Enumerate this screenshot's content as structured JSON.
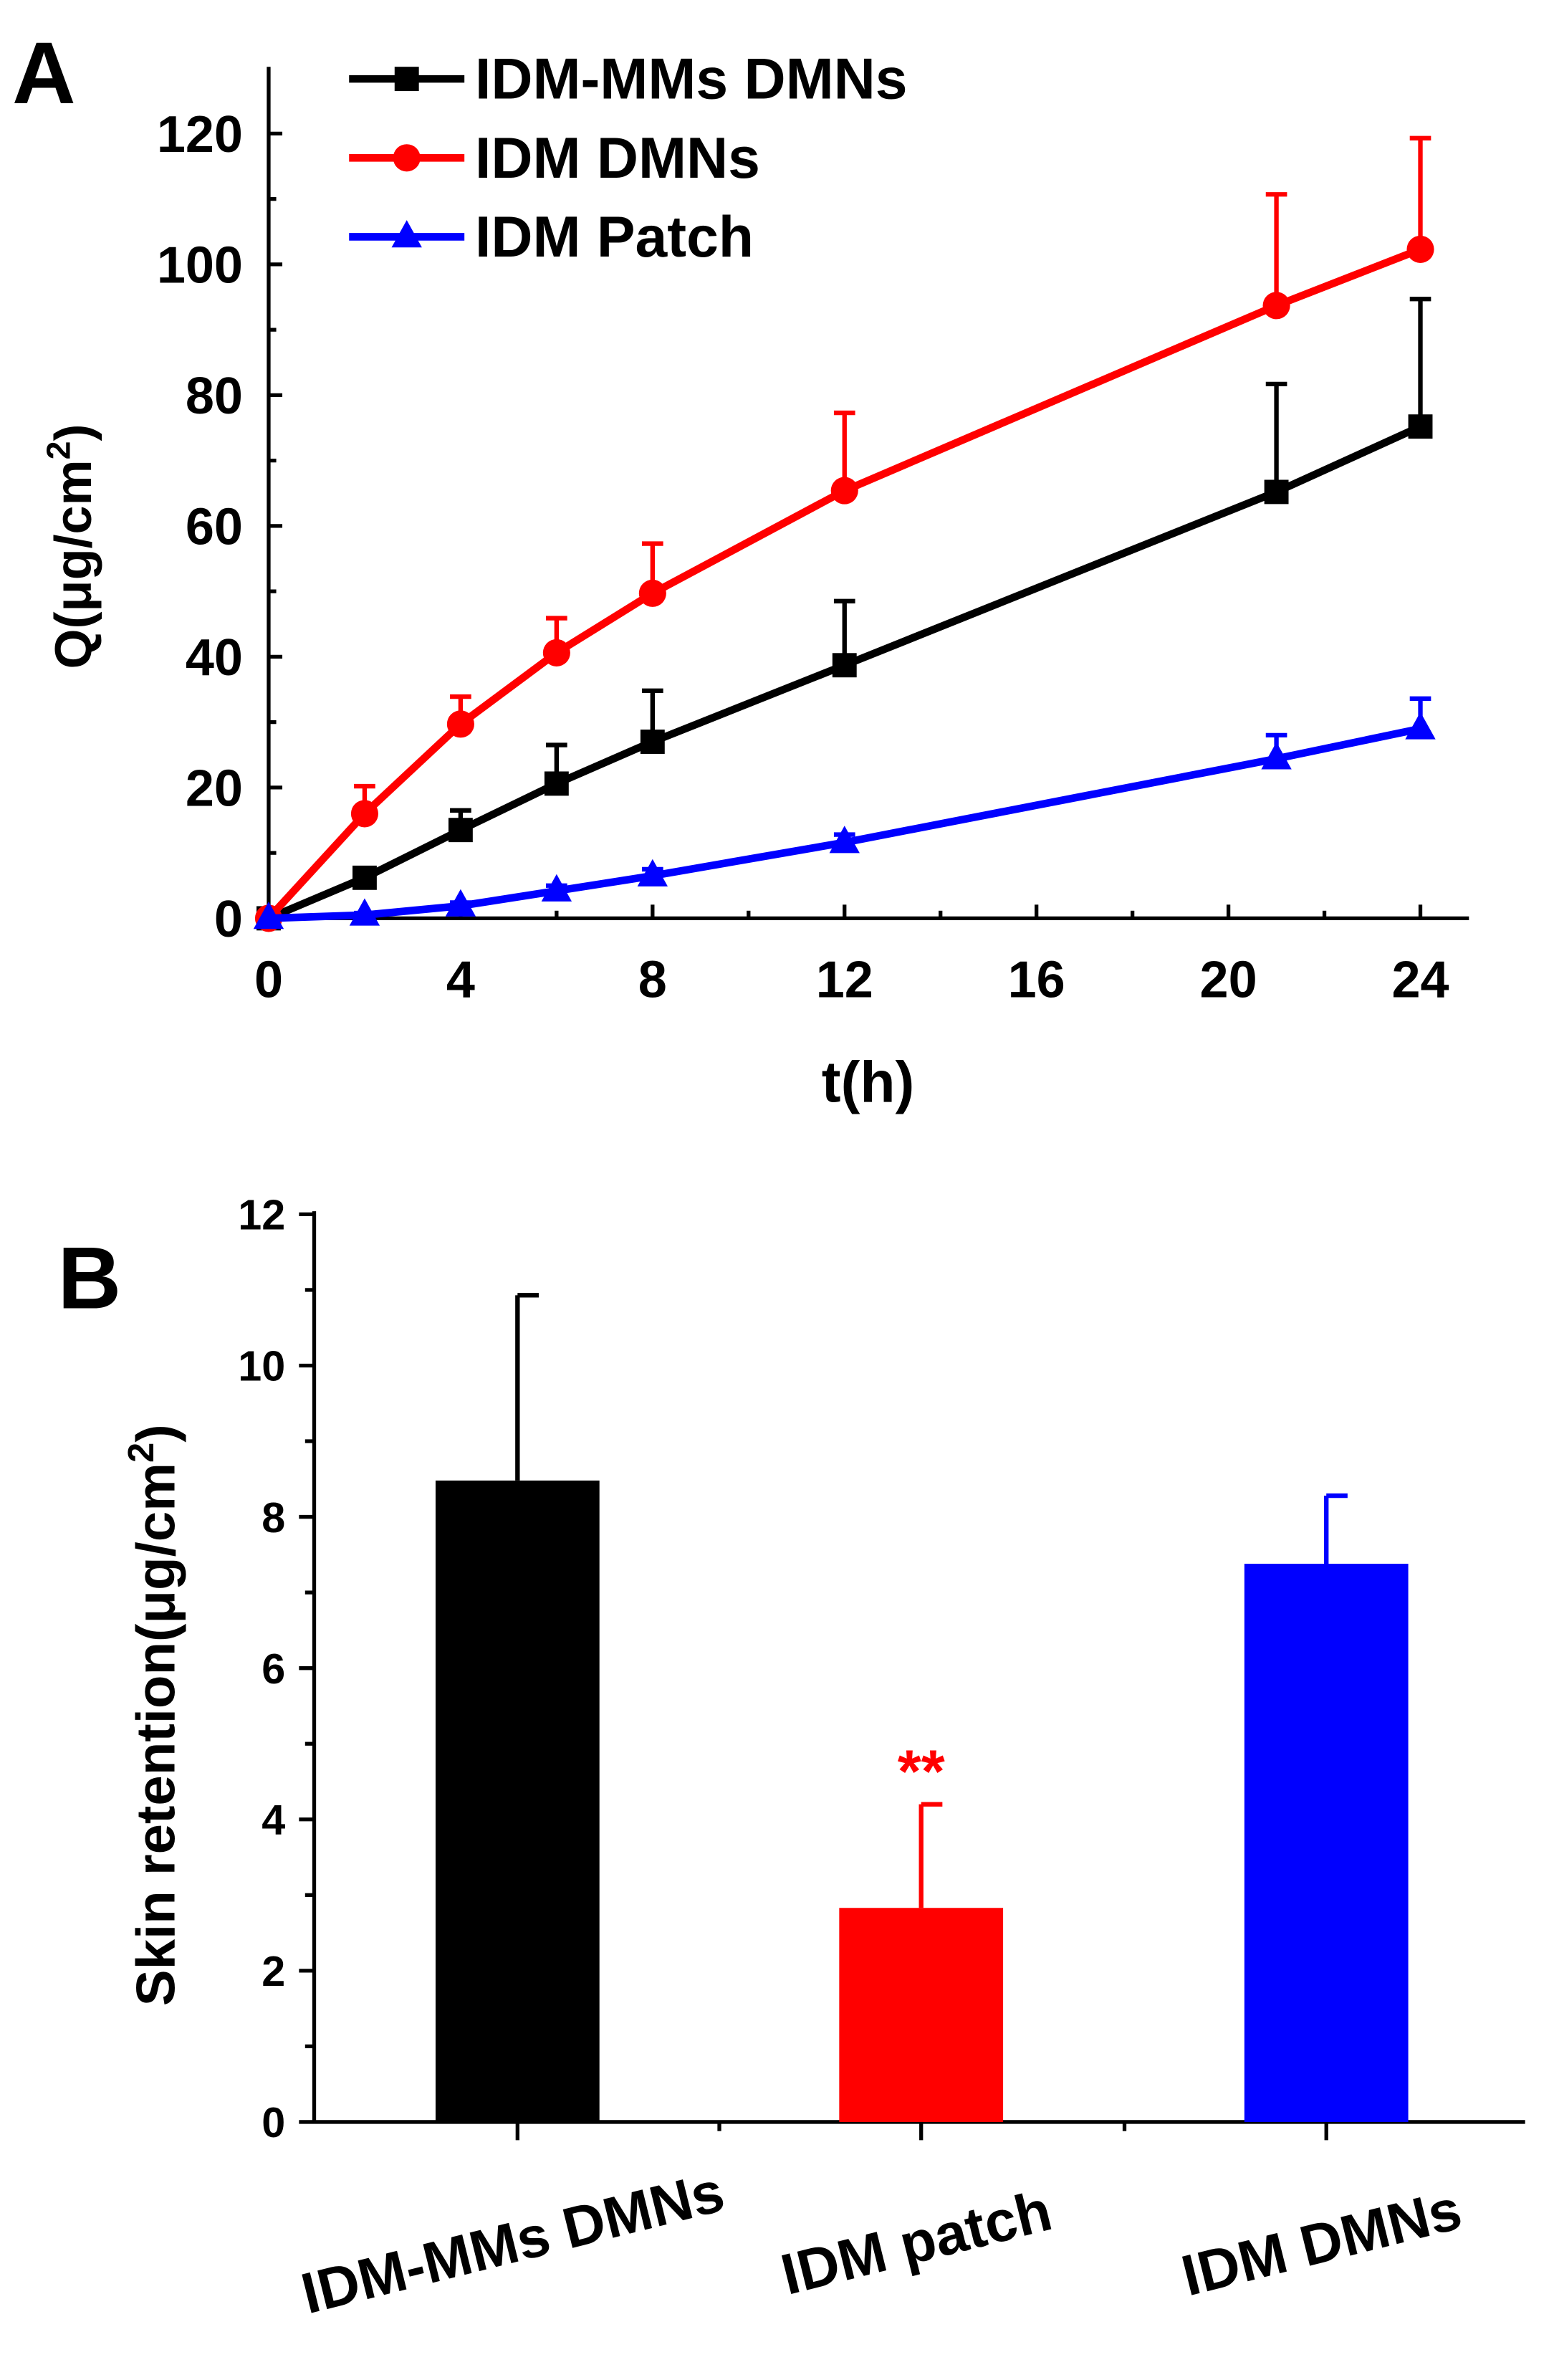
{
  "chart_data": [
    {
      "type": "line",
      "panel_label": "A",
      "xlabel": "t(h)",
      "ylabel": "Q(μg/cm²)",
      "ylabel_main": "Q(μg/cm",
      "ylabel_sup": "2",
      "ylabel_end": ")",
      "xlim": [
        0,
        25
      ],
      "ylim": [
        0,
        130
      ],
      "xticks": [
        0,
        4,
        8,
        12,
        16,
        20,
        24
      ],
      "yticks": [
        0,
        20,
        40,
        60,
        80,
        100,
        120
      ],
      "legend_position": "top-left",
      "x": [
        0,
        2,
        4,
        6,
        8,
        12,
        21,
        24
      ],
      "series": [
        {
          "name": "IDM-MMs DMNs",
          "color": "#000000",
          "marker": "square",
          "values": [
            0,
            6.2,
            13.5,
            20.6,
            27.0,
            38.7,
            65.2,
            75.2
          ],
          "error_upper": [
            0,
            1.0,
            3.0,
            5.9,
            7.8,
            9.8,
            16.5,
            19.5
          ]
        },
        {
          "name": "IDM DMNs",
          "color": "#ff0000",
          "marker": "circle",
          "values": [
            0,
            16.0,
            29.7,
            40.6,
            49.7,
            65.4,
            93.7,
            102.3
          ],
          "error_upper": [
            0,
            4.2,
            4.2,
            5.3,
            7.6,
            11.9,
            17.0,
            17.0
          ]
        },
        {
          "name": "IDM Patch",
          "color": "#0000ff",
          "marker": "triangle",
          "values": [
            0,
            0.5,
            1.9,
            4.2,
            6.5,
            11.6,
            24.4,
            29.0
          ],
          "error_upper": [
            0,
            0.3,
            0.5,
            0.8,
            1.0,
            1.2,
            3.6,
            4.6
          ]
        }
      ]
    },
    {
      "type": "bar",
      "panel_label": "B",
      "xlabel": "",
      "ylabel_main": "Skin retention(μg/cm",
      "ylabel_sup": "2",
      "ylabel_end": ")",
      "ylim": [
        0,
        12
      ],
      "yticks": [
        0,
        2,
        4,
        6,
        8,
        10,
        12
      ],
      "categories": [
        "IDM-MMs DMNs",
        "IDM patch",
        "IDM DMNs"
      ],
      "values": [
        8.48,
        2.83,
        7.38
      ],
      "error_upper": [
        2.45,
        1.37,
        0.9
      ],
      "colors": [
        "#000000",
        "#ff0000",
        "#0000ff"
      ],
      "annotations": [
        {
          "category": "IDM patch",
          "text": "**",
          "color": "#ff0000"
        }
      ]
    }
  ]
}
